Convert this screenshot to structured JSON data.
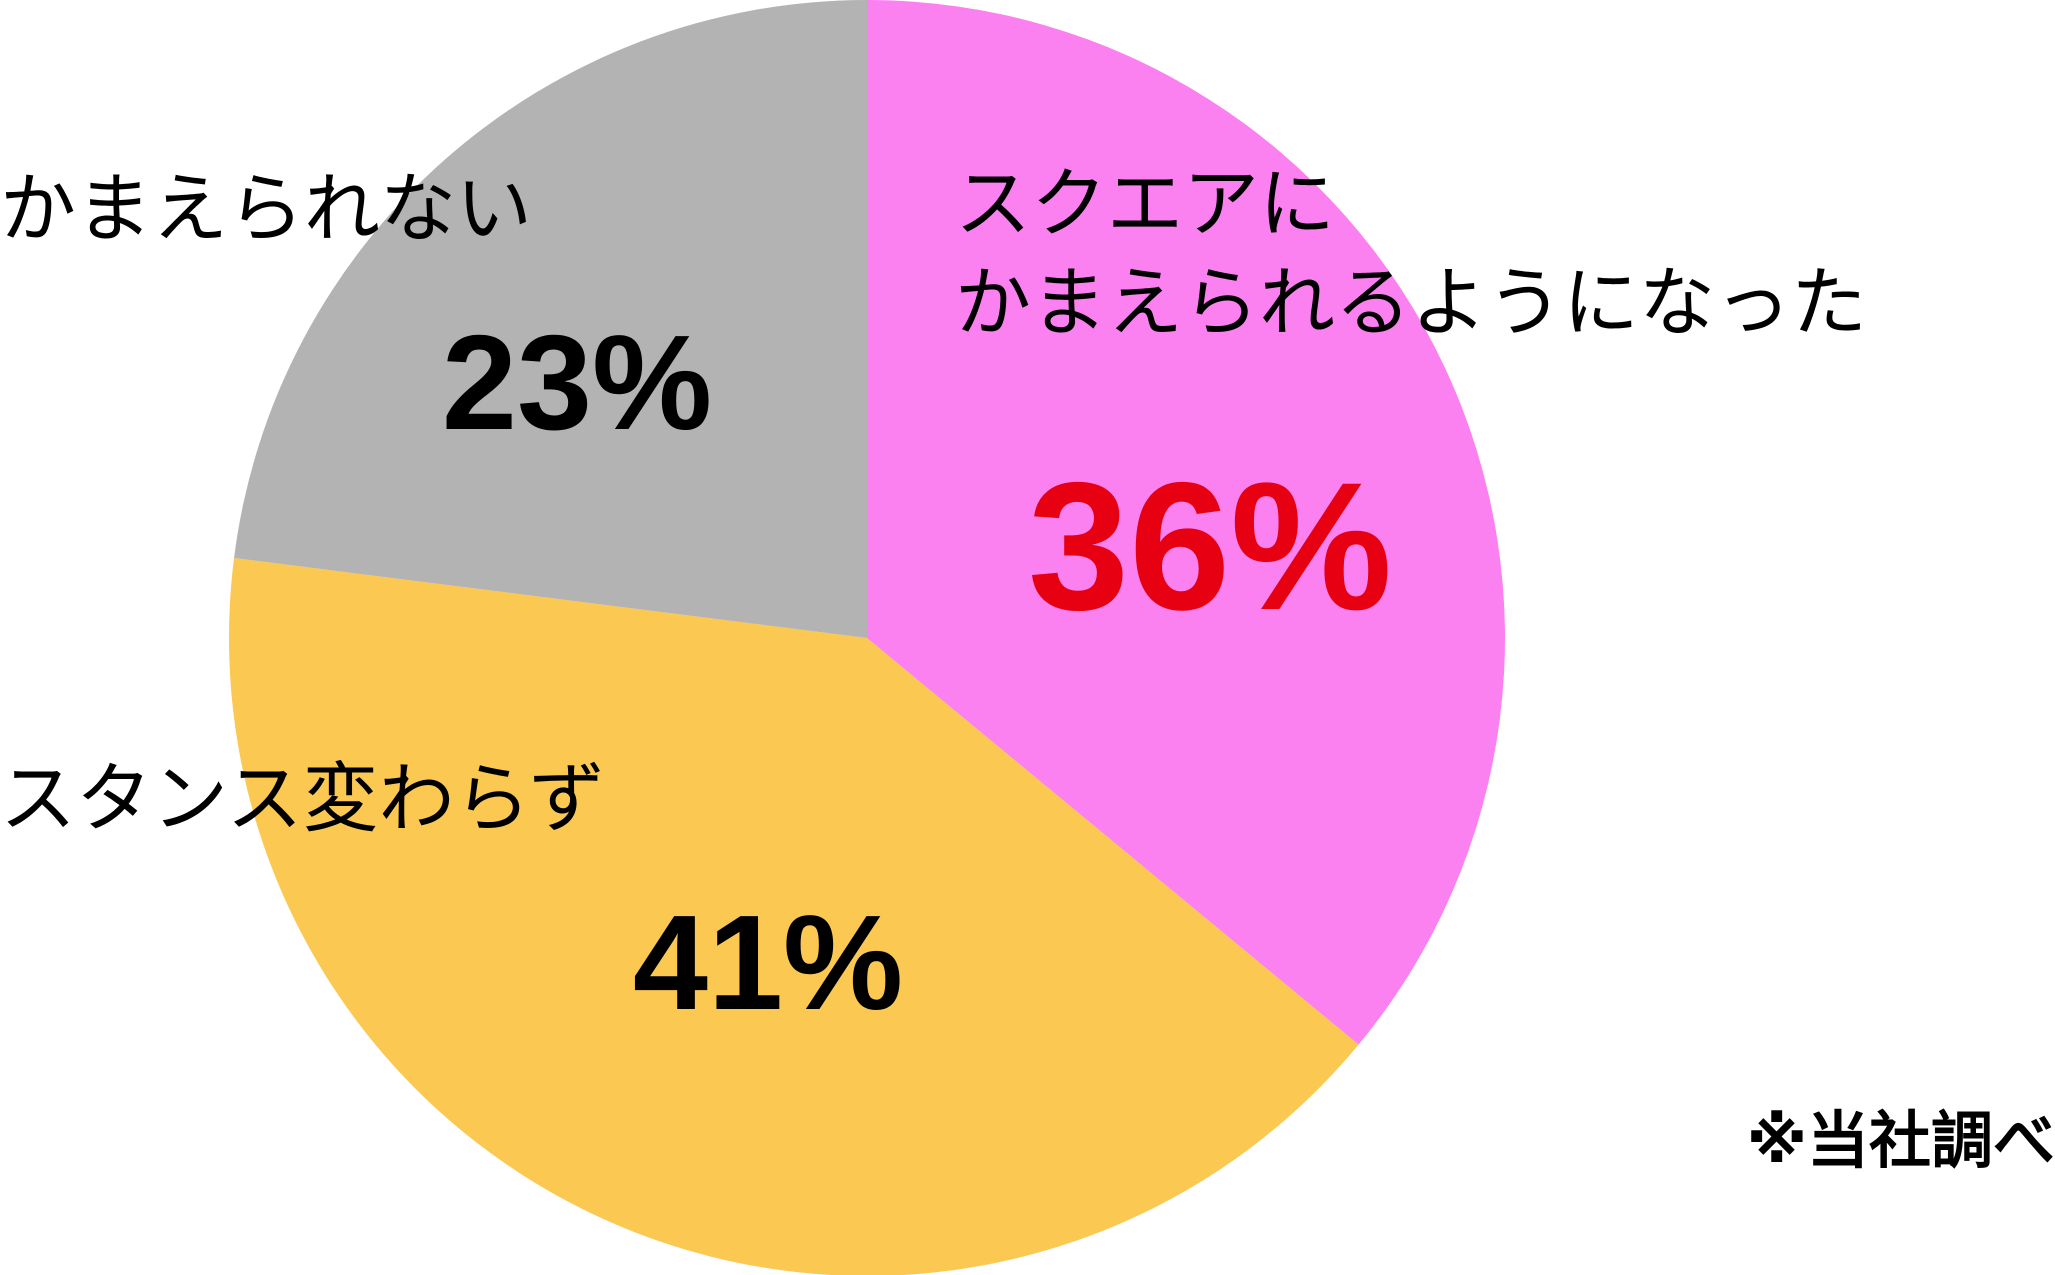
{
  "chart_data": {
    "type": "pie",
    "categories": [
      "スクエアに\nかまえられるようになった",
      "スタンス変わらず",
      "かまえられない"
    ],
    "values": [
      36,
      41,
      23
    ],
    "value_labels": [
      "36%",
      "41%",
      "23%"
    ],
    "colors": [
      "#fb80f0",
      "#fbc852",
      "#b3b3b3"
    ],
    "value_label_colors": [
      "#e60012",
      "#000000",
      "#000000"
    ],
    "note": "※当社調べ"
  }
}
